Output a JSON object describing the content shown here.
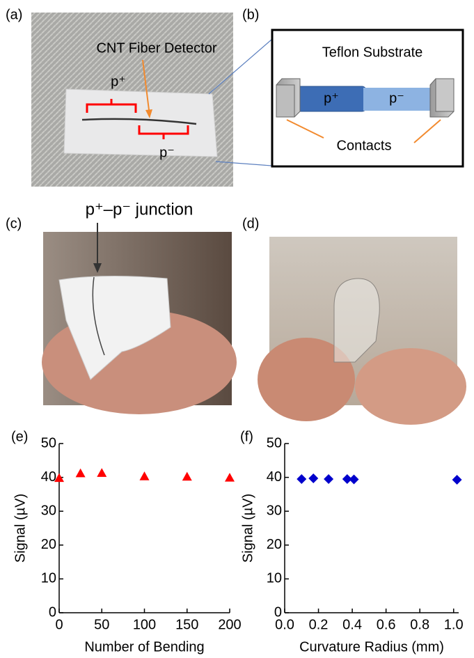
{
  "panel_labels": [
    "(a)",
    "(b)",
    "(c)",
    "(d)",
    "(e)",
    "(f)"
  ],
  "panel_a": {
    "label": "CNT Fiber Detector",
    "p_plus": "p⁺",
    "p_minus": "p⁻"
  },
  "panel_b": {
    "substrate": "Teflon Substrate",
    "p_plus": "p⁺",
    "p_minus": "p⁻",
    "contacts": "Contacts"
  },
  "panel_c": {
    "junction": "p⁺–p⁻ junction"
  },
  "chart_data": [
    {
      "type": "scatter",
      "x": [
        0,
        25,
        50,
        100,
        150,
        200
      ],
      "values": [
        39.8,
        41.2,
        41.3,
        40.3,
        40.2,
        39.9
      ],
      "color": "#ff0000",
      "marker": "triangle",
      "xlim": [
        0,
        200
      ],
      "ylim": [
        0,
        50
      ],
      "xticks": [
        0,
        50,
        100,
        150,
        200
      ],
      "yticks": [
        0,
        10,
        20,
        30,
        40,
        50
      ],
      "xlabel": "Number of Bending",
      "ylabel": "Signal (µV)"
    },
    {
      "type": "scatter",
      "x": [
        0.1,
        0.17,
        0.26,
        0.37,
        0.41,
        1.02
      ],
      "values": [
        39.5,
        39.7,
        39.5,
        39.5,
        39.4,
        39.3
      ],
      "color": "#0000cc",
      "marker": "diamond",
      "xlim": [
        0,
        1.03
      ],
      "ylim": [
        0,
        50
      ],
      "xticks": [
        {
          "value": 0,
          "label": "0.0"
        },
        0.2,
        0.4,
        0.6,
        0.8,
        {
          "value": 1,
          "label": "1.0"
        }
      ],
      "yticks": [
        0,
        10,
        20,
        30,
        40,
        50
      ],
      "xlabel": "Curvature Radius (mm)",
      "ylabel": "Signal (µV)"
    }
  ]
}
